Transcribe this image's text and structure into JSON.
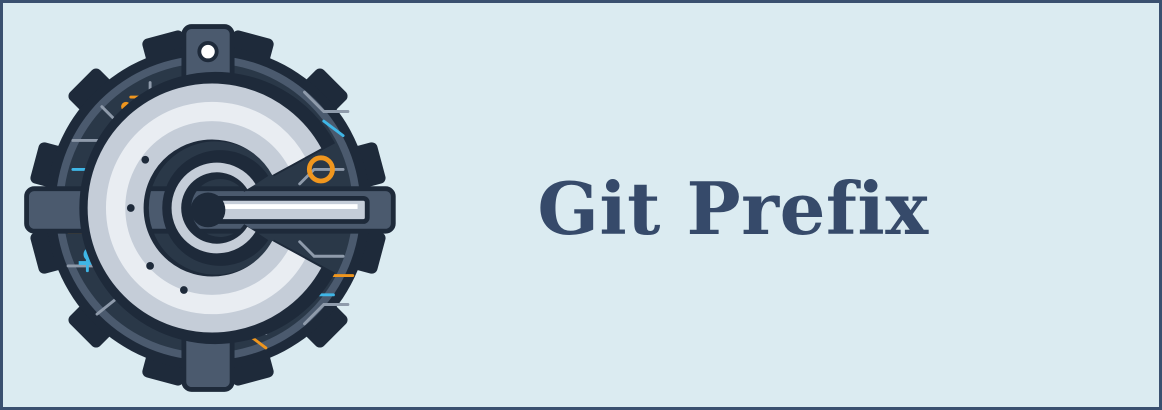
{
  "banner": {
    "title": "Git Prefix",
    "logo_icon": "gear-circuit-c-logo-icon"
  },
  "colors": {
    "background": "#dbebf1",
    "border": "#3a5070",
    "title": "#364a6a",
    "gear": "#1e2a3a",
    "ring_metal": "#c5cdd8",
    "accent_orange": "#f0961e",
    "accent_blue": "#3fb6e6"
  }
}
